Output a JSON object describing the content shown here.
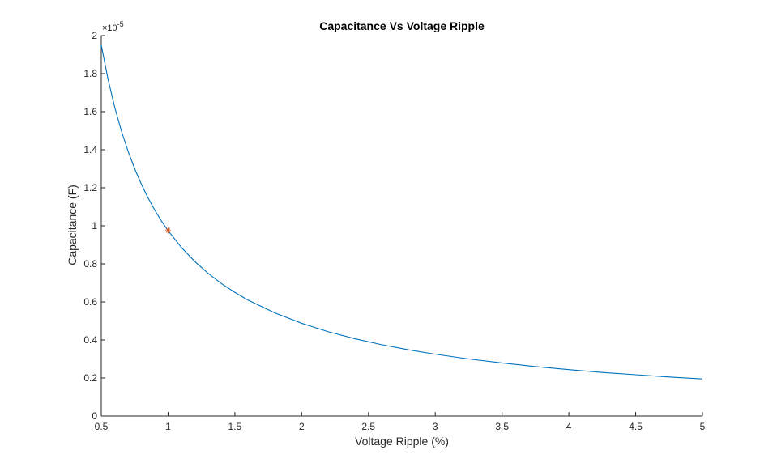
{
  "chart_data": {
    "type": "line",
    "title": "Capacitance Vs Voltage Ripple",
    "xlabel": "Voltage Ripple (%)",
    "ylabel": "Capacitance (F)",
    "y_exponent": "×10",
    "y_exponent_power": "-5",
    "xlim": [
      0.5,
      5
    ],
    "ylim": [
      0,
      2
    ],
    "x_ticks": [
      0.5,
      1,
      1.5,
      2,
      2.5,
      3,
      3.5,
      4,
      4.5,
      5
    ],
    "x_tick_labels": [
      "0.5",
      "1",
      "1.5",
      "2",
      "2.5",
      "3",
      "3.5",
      "4",
      "4.5",
      "5"
    ],
    "y_ticks": [
      0,
      0.2,
      0.4,
      0.6,
      0.8,
      1,
      1.2,
      1.4,
      1.6,
      1.8,
      2
    ],
    "y_tick_labels": [
      "0",
      "0.2",
      "0.4",
      "0.6",
      "0.8",
      "1",
      "1.2",
      "1.4",
      "1.6",
      "1.8",
      "2"
    ],
    "grid": false,
    "series": [
      {
        "color": "#0072BD",
        "x": [
          0.5,
          0.55,
          0.6,
          0.65,
          0.7,
          0.75,
          0.8,
          0.85,
          0.9,
          0.95,
          1.0,
          1.1,
          1.2,
          1.3,
          1.4,
          1.5,
          1.6,
          1.8,
          2.0,
          2.2,
          2.4,
          2.6,
          2.8,
          3.0,
          3.25,
          3.5,
          3.75,
          4.0,
          4.25,
          4.5,
          4.75,
          5.0
        ],
        "y": [
          1.95,
          1.773,
          1.625,
          1.5,
          1.393,
          1.3,
          1.219,
          1.147,
          1.083,
          1.026,
          0.975,
          0.886,
          0.8125,
          0.75,
          0.696,
          0.65,
          0.609,
          0.542,
          0.4875,
          0.443,
          0.406,
          0.375,
          0.348,
          0.325,
          0.3,
          0.279,
          0.26,
          0.244,
          0.229,
          0.217,
          0.205,
          0.195
        ]
      }
    ],
    "markers": [
      {
        "x": 1,
        "y": 0.975,
        "symbol": "*",
        "color": "#D95319"
      }
    ]
  }
}
